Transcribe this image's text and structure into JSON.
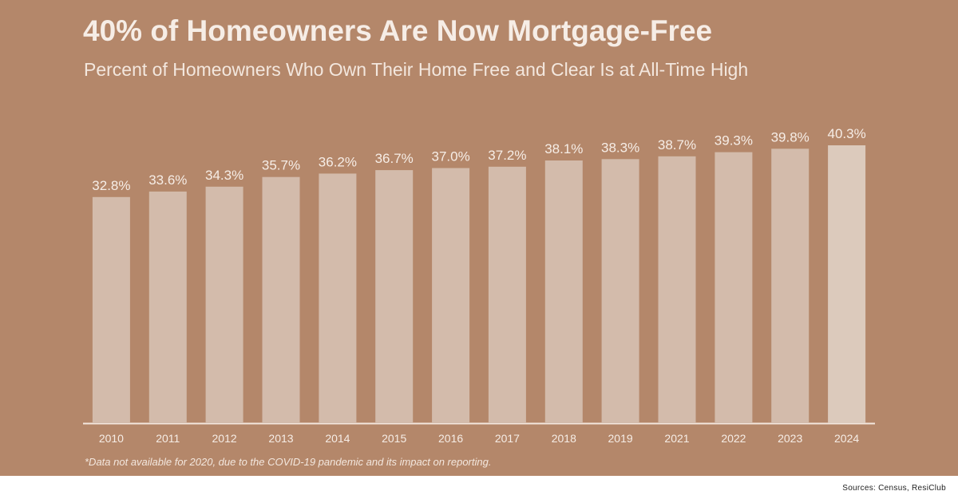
{
  "title": "40% of Homeowners Are Now Mortgage-Free",
  "subtitle": "Percent of Homeowners Who Own Their Home Free and Clear Is at All-Time High",
  "footnote": "*Data not available for 2020, due to the COVID-19 pandemic and its impact on reporting.",
  "source": "Sources: Census, ResiClub",
  "colors": {
    "background": "#b4876a",
    "bar": "#d3bbab",
    "bar_highlight": "#dccabc",
    "text_light": "#f6ede6",
    "axis": "#f3e7de"
  },
  "chart_data": {
    "type": "bar",
    "title": "40% of Homeowners Are Now Mortgage-Free",
    "subtitle": "Percent of Homeowners Who Own Their Home Free and Clear Is at All-Time High",
    "categories": [
      "2010",
      "2011",
      "2012",
      "2013",
      "2014",
      "2015",
      "2016",
      "2017",
      "2018",
      "2019",
      "2021",
      "2022",
      "2023",
      "2024"
    ],
    "values": [
      32.8,
      33.6,
      34.3,
      35.7,
      36.2,
      36.7,
      37.0,
      37.2,
      38.1,
      38.3,
      38.7,
      39.3,
      39.8,
      40.3
    ],
    "data_labels": [
      "32.8%",
      "33.6%",
      "34.3%",
      "35.7%",
      "36.2%",
      "36.7%",
      "37.0%",
      "37.2%",
      "38.1%",
      "38.3%",
      "38.7%",
      "39.3%",
      "39.8%",
      "40.3%"
    ],
    "xlabel": "",
    "ylabel": "",
    "ylim": [
      0,
      40.3
    ],
    "grid": false,
    "legend": "none"
  }
}
